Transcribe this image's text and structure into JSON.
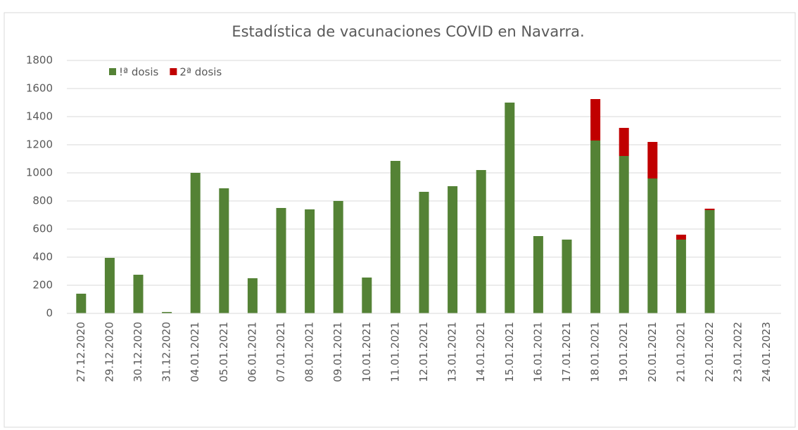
{
  "chart_data": {
    "type": "stacked-bar",
    "title": "Estadística de vacunaciones COVID en Navarra.",
    "categories": [
      "27.12.2020",
      "29.12.2020",
      "30.12.2020",
      "31.12.2020",
      "04.01.2021",
      "05.01.2021",
      "06.01.2021",
      "07.01.2021",
      "08.01.2021",
      "09.01.2021",
      "10.01.2021",
      "11.01.2021",
      "12.01.2021",
      "13.01.2021",
      "14.01.2021",
      "15.01.2021",
      "16.01.2021",
      "17.01.2021",
      "18.01.2021",
      "19.01.2021",
      "20.01.2021",
      "21.01.2021",
      "22.01.2022",
      "23.01.2022",
      "24.01.2023"
    ],
    "series": [
      {
        "name": "!ª dosis",
        "color": "#548235",
        "values": [
          140,
          395,
          275,
          10,
          1000,
          890,
          250,
          750,
          740,
          800,
          255,
          1085,
          865,
          905,
          1020,
          1500,
          550,
          525,
          1230,
          1120,
          960,
          525,
          735,
          0,
          0
        ]
      },
      {
        "name": "2ª dosis",
        "color": "#c00000",
        "values": [
          0,
          0,
          0,
          0,
          0,
          0,
          0,
          0,
          0,
          0,
          0,
          0,
          0,
          0,
          0,
          0,
          0,
          0,
          295,
          200,
          260,
          35,
          10,
          0,
          0
        ]
      }
    ],
    "ylim": [
      0,
      1800
    ],
    "yticks": [
      0,
      200,
      400,
      600,
      800,
      1000,
      1200,
      1400,
      1600,
      1800
    ],
    "grid": true,
    "legend": "top-left"
  }
}
